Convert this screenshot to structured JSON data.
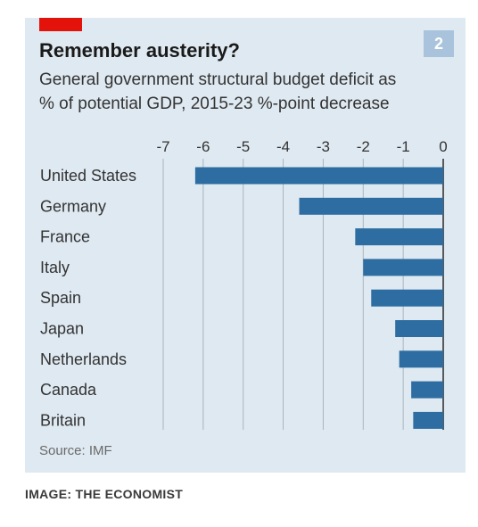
{
  "header": {
    "badge": "2",
    "title": "Remember austerity?",
    "subtitle": "General government structural budget deficit as % of potential GDP, 2015-23 %-point decrease"
  },
  "source": "Source: IMF",
  "caption": "IMAGE: THE ECONOMIST",
  "colors": {
    "bar": "#2d6da1",
    "background": "#dfe9f1",
    "accent": "#e3120b",
    "badge": "#a8c3db"
  },
  "chart_data": {
    "type": "bar",
    "orientation": "horizontal",
    "categories": [
      "United States",
      "Germany",
      "France",
      "Italy",
      "Spain",
      "Japan",
      "Netherlands",
      "Canada",
      "Britain"
    ],
    "values": [
      -6.2,
      -3.6,
      -2.2,
      -2.0,
      -1.8,
      -1.2,
      -1.1,
      -0.8,
      -0.75
    ],
    "xlim": [
      -7,
      0
    ],
    "xticks": [
      "-7",
      "-6",
      "-5",
      "-4",
      "-3",
      "-2",
      "-1",
      "0"
    ],
    "tick_values": [
      -7,
      -6,
      -5,
      -4,
      -3,
      -2,
      -1,
      0
    ],
    "grid": true
  }
}
